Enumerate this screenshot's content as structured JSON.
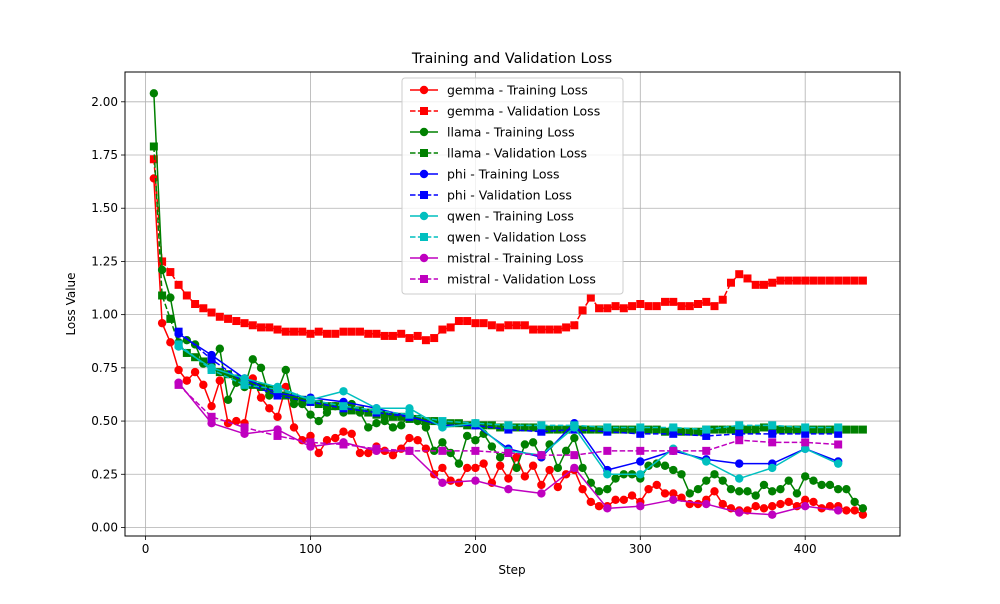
{
  "chart_data": {
    "type": "line",
    "title": "Training and Validation Loss",
    "xlabel": "Step",
    "ylabel": "Loss Value",
    "xlim": [
      -12.5,
      457.5
    ],
    "ylim": [
      -0.04,
      2.14
    ],
    "xticks": [
      0,
      100,
      200,
      300,
      400
    ],
    "yticks": [
      0.0,
      0.25,
      0.5,
      0.75,
      1.0,
      1.25,
      1.5,
      1.75,
      2.0
    ],
    "xtick_labels": [
      "0",
      "100",
      "200",
      "300",
      "400"
    ],
    "ytick_labels": [
      "0.00",
      "0.25",
      "0.50",
      "0.75",
      "1.00",
      "1.25",
      "1.50",
      "1.75",
      "2.00"
    ],
    "grid": true,
    "legend_position": "top-center",
    "series": [
      {
        "name": "gemma - Training Loss",
        "color": "#ff0000",
        "marker": "circle",
        "linestyle": "solid",
        "x": [
          5,
          10,
          15,
          20,
          25,
          30,
          35,
          40,
          45,
          50,
          55,
          60,
          65,
          70,
          75,
          80,
          85,
          90,
          95,
          100,
          105,
          110,
          115,
          120,
          125,
          130,
          135,
          140,
          145,
          150,
          155,
          160,
          165,
          170,
          175,
          180,
          185,
          190,
          195,
          200,
          205,
          210,
          215,
          220,
          225,
          230,
          235,
          240,
          245,
          250,
          255,
          260,
          265,
          270,
          275,
          280,
          285,
          290,
          295,
          300,
          305,
          310,
          315,
          320,
          325,
          330,
          335,
          340,
          345,
          350,
          355,
          360,
          365,
          370,
          375,
          380,
          385,
          390,
          395,
          400,
          405,
          410,
          415,
          420,
          425,
          430,
          435
        ],
        "y": [
          1.64,
          0.96,
          0.87,
          0.74,
          0.69,
          0.73,
          0.67,
          0.57,
          0.69,
          0.49,
          0.5,
          0.49,
          0.7,
          0.61,
          0.56,
          0.52,
          0.66,
          0.47,
          0.41,
          0.43,
          0.35,
          0.41,
          0.42,
          0.45,
          0.44,
          0.35,
          0.35,
          0.38,
          0.36,
          0.34,
          0.37,
          0.42,
          0.41,
          0.37,
          0.25,
          0.28,
          0.22,
          0.21,
          0.28,
          0.28,
          0.3,
          0.21,
          0.29,
          0.23,
          0.33,
          0.24,
          0.29,
          0.2,
          0.27,
          0.19,
          0.25,
          0.27,
          0.18,
          0.12,
          0.1,
          0.1,
          0.13,
          0.13,
          0.15,
          0.12,
          0.18,
          0.2,
          0.16,
          0.16,
          0.14,
          0.11,
          0.11,
          0.13,
          0.17,
          0.11,
          0.09,
          0.08,
          0.08,
          0.1,
          0.09,
          0.1,
          0.11,
          0.12,
          0.1,
          0.13,
          0.12,
          0.09,
          0.1,
          0.1,
          0.08,
          0.08,
          0.06
        ]
      },
      {
        "name": "gemma - Validation Loss",
        "color": "#ff0000",
        "marker": "square",
        "linestyle": "dashed",
        "x": [
          5,
          10,
          15,
          20,
          25,
          30,
          35,
          40,
          45,
          50,
          55,
          60,
          65,
          70,
          75,
          80,
          85,
          90,
          95,
          100,
          105,
          110,
          115,
          120,
          125,
          130,
          135,
          140,
          145,
          150,
          155,
          160,
          165,
          170,
          175,
          180,
          185,
          190,
          195,
          200,
          205,
          210,
          215,
          220,
          225,
          230,
          235,
          240,
          245,
          250,
          255,
          260,
          265,
          270,
          275,
          280,
          285,
          290,
          295,
          300,
          305,
          310,
          315,
          320,
          325,
          330,
          335,
          340,
          345,
          350,
          355,
          360,
          365,
          370,
          375,
          380,
          385,
          390,
          395,
          400,
          405,
          410,
          415,
          420,
          425,
          430,
          435
        ],
        "y": [
          1.73,
          1.25,
          1.2,
          1.14,
          1.09,
          1.05,
          1.03,
          1.01,
          0.99,
          0.98,
          0.97,
          0.96,
          0.95,
          0.94,
          0.94,
          0.93,
          0.92,
          0.92,
          0.92,
          0.91,
          0.92,
          0.91,
          0.91,
          0.92,
          0.92,
          0.92,
          0.91,
          0.91,
          0.9,
          0.9,
          0.91,
          0.89,
          0.9,
          0.88,
          0.89,
          0.93,
          0.94,
          0.97,
          0.97,
          0.96,
          0.96,
          0.95,
          0.94,
          0.95,
          0.95,
          0.95,
          0.93,
          0.93,
          0.93,
          0.93,
          0.94,
          0.95,
          1.02,
          1.08,
          1.03,
          1.03,
          1.04,
          1.03,
          1.04,
          1.05,
          1.04,
          1.04,
          1.06,
          1.06,
          1.04,
          1.04,
          1.05,
          1.06,
          1.04,
          1.07,
          1.15,
          1.19,
          1.17,
          1.14,
          1.14,
          1.15,
          1.16,
          1.16,
          1.16,
          1.16,
          1.16,
          1.16,
          1.16,
          1.16,
          1.16,
          1.16,
          1.16
        ]
      },
      {
        "name": "llama - Training Loss",
        "color": "#008000",
        "marker": "circle",
        "linestyle": "solid",
        "x": [
          5,
          10,
          15,
          20,
          25,
          30,
          35,
          40,
          45,
          50,
          55,
          60,
          65,
          70,
          75,
          80,
          85,
          90,
          95,
          100,
          105,
          110,
          115,
          120,
          125,
          130,
          135,
          140,
          145,
          150,
          155,
          160,
          165,
          170,
          175,
          180,
          185,
          190,
          195,
          200,
          205,
          210,
          215,
          220,
          225,
          230,
          235,
          240,
          245,
          250,
          255,
          260,
          265,
          270,
          275,
          280,
          285,
          290,
          295,
          300,
          305,
          310,
          315,
          320,
          325,
          330,
          335,
          340,
          345,
          350,
          355,
          360,
          365,
          370,
          375,
          380,
          385,
          390,
          395,
          400,
          405,
          410,
          415,
          420,
          425,
          430,
          435
        ],
        "y": [
          2.04,
          1.21,
          1.08,
          0.87,
          0.88,
          0.86,
          0.77,
          0.78,
          0.84,
          0.6,
          0.68,
          0.66,
          0.79,
          0.75,
          0.62,
          0.64,
          0.74,
          0.58,
          0.58,
          0.53,
          0.5,
          0.54,
          0.57,
          0.54,
          0.58,
          0.54,
          0.47,
          0.49,
          0.5,
          0.47,
          0.48,
          0.53,
          0.5,
          0.47,
          0.36,
          0.4,
          0.35,
          0.3,
          0.43,
          0.41,
          0.44,
          0.38,
          0.33,
          0.36,
          0.28,
          0.39,
          0.4,
          0.33,
          0.39,
          0.28,
          0.36,
          0.42,
          0.28,
          0.21,
          0.17,
          0.18,
          0.23,
          0.25,
          0.25,
          0.23,
          0.29,
          0.3,
          0.29,
          0.27,
          0.25,
          0.16,
          0.18,
          0.22,
          0.25,
          0.22,
          0.18,
          0.17,
          0.17,
          0.15,
          0.2,
          0.17,
          0.18,
          0.22,
          0.16,
          0.24,
          0.22,
          0.2,
          0.2,
          0.18,
          0.18,
          0.12,
          0.09
        ]
      },
      {
        "name": "llama - Validation Loss",
        "color": "#008000",
        "marker": "square",
        "linestyle": "dashed",
        "x": [
          5,
          10,
          15,
          20,
          25,
          30,
          35,
          40,
          45,
          50,
          55,
          60,
          65,
          70,
          75,
          80,
          85,
          90,
          95,
          100,
          105,
          110,
          115,
          120,
          125,
          130,
          135,
          140,
          145,
          150,
          155,
          160,
          165,
          170,
          175,
          180,
          185,
          190,
          195,
          200,
          205,
          210,
          215,
          220,
          225,
          230,
          235,
          240,
          245,
          250,
          255,
          260,
          265,
          270,
          275,
          280,
          285,
          290,
          295,
          300,
          305,
          310,
          315,
          320,
          325,
          330,
          335,
          340,
          345,
          350,
          355,
          360,
          365,
          370,
          375,
          380,
          385,
          390,
          395,
          400,
          405,
          410,
          415,
          420,
          425,
          430,
          435
        ],
        "y": [
          1.79,
          1.09,
          0.98,
          0.86,
          0.82,
          0.8,
          0.78,
          0.75,
          0.73,
          0.72,
          0.7,
          0.69,
          0.67,
          0.66,
          0.65,
          0.63,
          0.62,
          0.61,
          0.6,
          0.59,
          0.58,
          0.57,
          0.57,
          0.56,
          0.55,
          0.55,
          0.54,
          0.53,
          0.53,
          0.52,
          0.52,
          0.51,
          0.51,
          0.5,
          0.5,
          0.49,
          0.49,
          0.49,
          0.48,
          0.48,
          0.48,
          0.48,
          0.47,
          0.47,
          0.47,
          0.47,
          0.47,
          0.46,
          0.46,
          0.46,
          0.46,
          0.46,
          0.46,
          0.46,
          0.46,
          0.46,
          0.46,
          0.46,
          0.46,
          0.46,
          0.46,
          0.46,
          0.45,
          0.46,
          0.45,
          0.45,
          0.45,
          0.46,
          0.46,
          0.46,
          0.46,
          0.46,
          0.46,
          0.46,
          0.47,
          0.46,
          0.46,
          0.46,
          0.46,
          0.46,
          0.46,
          0.46,
          0.46,
          0.46,
          0.46,
          0.46,
          0.46
        ]
      },
      {
        "name": "phi - Training Loss",
        "color": "#0000ff",
        "marker": "circle",
        "linestyle": "solid",
        "x": [
          20,
          40,
          60,
          80,
          100,
          120,
          140,
          160,
          180,
          200,
          220,
          240,
          260,
          280,
          300,
          320,
          340,
          360,
          380,
          400,
          420
        ],
        "y": [
          0.91,
          0.81,
          0.7,
          0.63,
          0.61,
          0.59,
          0.56,
          0.52,
          0.48,
          0.48,
          0.37,
          0.33,
          0.49,
          0.27,
          0.31,
          0.36,
          0.32,
          0.3,
          0.3,
          0.37,
          0.31
        ]
      },
      {
        "name": "phi - Validation Loss",
        "color": "#0000ff",
        "marker": "square",
        "linestyle": "dashed",
        "x": [
          20,
          40,
          60,
          80,
          100,
          120,
          140,
          160,
          180,
          200,
          220,
          240,
          260,
          280,
          300,
          320,
          340,
          360,
          380,
          400,
          420
        ],
        "y": [
          0.92,
          0.79,
          0.68,
          0.62,
          0.59,
          0.56,
          0.54,
          0.52,
          0.48,
          0.48,
          0.46,
          0.45,
          0.46,
          0.45,
          0.44,
          0.44,
          0.43,
          0.44,
          0.44,
          0.44,
          0.44
        ]
      },
      {
        "name": "qwen - Training Loss",
        "color": "#00bfbf",
        "marker": "circle",
        "linestyle": "solid",
        "x": [
          20,
          40,
          60,
          80,
          100,
          120,
          140,
          160,
          180,
          200,
          220,
          240,
          260,
          280,
          300,
          320,
          340,
          360,
          380,
          400,
          420
        ],
        "y": [
          0.85,
          0.75,
          0.7,
          0.66,
          0.6,
          0.64,
          0.56,
          0.56,
          0.47,
          0.49,
          0.36,
          0.34,
          0.47,
          0.25,
          0.25,
          0.37,
          0.31,
          0.23,
          0.28,
          0.37,
          0.3
        ]
      },
      {
        "name": "qwen - Validation Loss",
        "color": "#00bfbf",
        "marker": "square",
        "linestyle": "dashed",
        "x": [
          20,
          40,
          60,
          80,
          100,
          120,
          140,
          160,
          180,
          200,
          220,
          240,
          260,
          280,
          300,
          320,
          340,
          360,
          380,
          400,
          420
        ],
        "y": [
          0.86,
          0.74,
          0.67,
          0.65,
          0.6,
          0.57,
          0.55,
          0.53,
          0.5,
          0.49,
          0.48,
          0.48,
          0.48,
          0.47,
          0.47,
          0.47,
          0.46,
          0.48,
          0.48,
          0.47,
          0.47
        ]
      },
      {
        "name": "mistral - Training Loss",
        "color": "#bf00bf",
        "marker": "circle",
        "linestyle": "solid",
        "x": [
          20,
          40,
          60,
          80,
          100,
          120,
          140,
          160,
          180,
          200,
          220,
          240,
          260,
          280,
          300,
          320,
          340,
          360,
          380,
          400,
          420
        ],
        "y": [
          0.68,
          0.49,
          0.44,
          0.46,
          0.38,
          0.4,
          0.36,
          0.36,
          0.21,
          0.22,
          0.18,
          0.16,
          0.28,
          0.09,
          0.1,
          0.13,
          0.11,
          0.07,
          0.06,
          0.1,
          0.08
        ]
      },
      {
        "name": "mistral - Validation Loss",
        "color": "#bf00bf",
        "marker": "square",
        "linestyle": "dashed",
        "x": [
          20,
          40,
          60,
          80,
          100,
          120,
          140,
          160,
          180,
          200,
          220,
          240,
          260,
          280,
          300,
          320,
          340,
          360,
          380,
          400,
          420
        ],
        "y": [
          0.67,
          0.52,
          0.47,
          0.43,
          0.4,
          0.39,
          0.37,
          0.36,
          0.36,
          0.36,
          0.35,
          0.34,
          0.34,
          0.36,
          0.36,
          0.36,
          0.36,
          0.41,
          0.4,
          0.4,
          0.39
        ]
      }
    ]
  }
}
